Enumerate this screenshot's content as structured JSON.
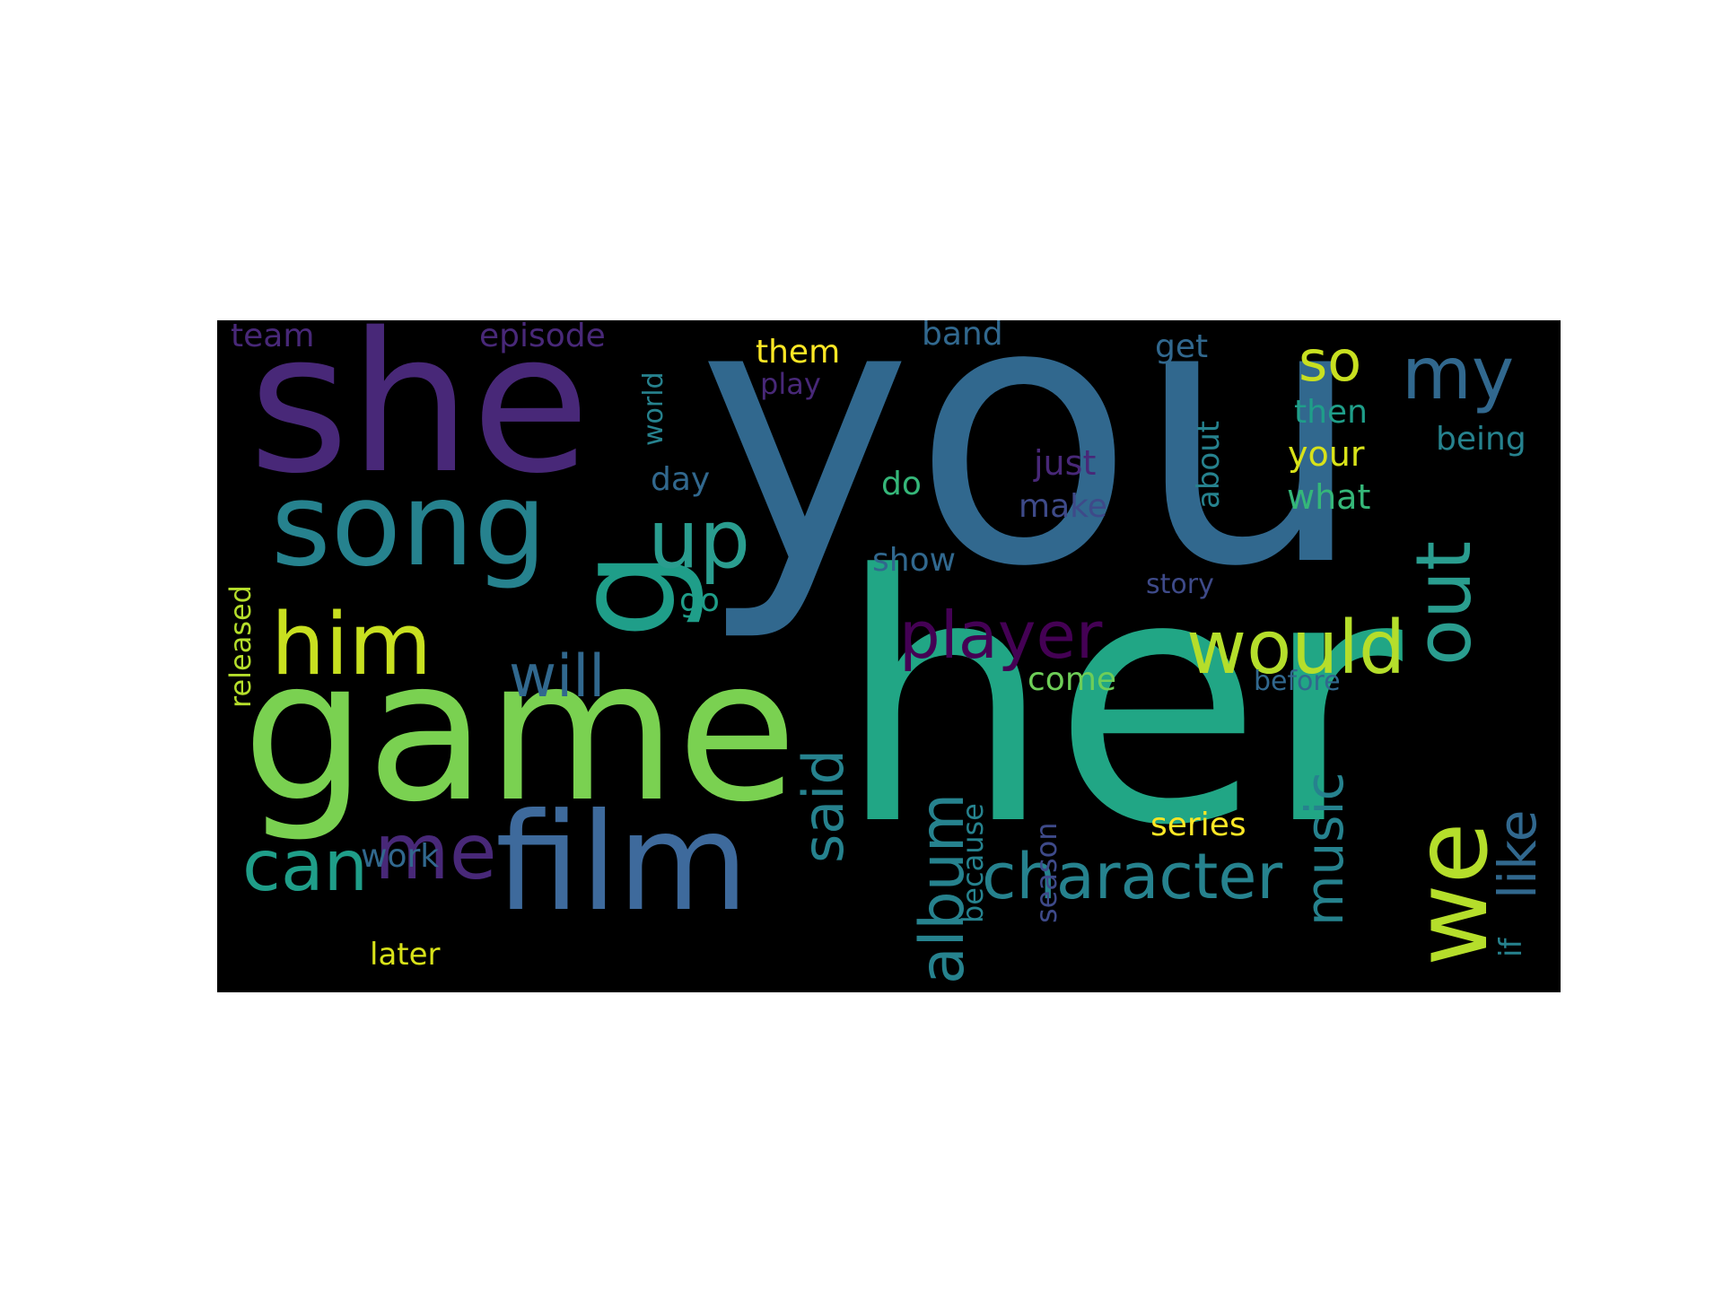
{
  "palette": {
    "c1": "#440154",
    "c2": "#482878",
    "c3": "#3e4a89",
    "c4": "#31688e",
    "c5": "#26828e",
    "c6": "#1f9e89",
    "c7": "#35b779",
    "c8": "#6ece58",
    "c9": "#b5de2b",
    "c10": "#fde725"
  },
  "words": [
    {
      "text": "you",
      "color": "#31688e"
    },
    {
      "text": "her",
      "color": "#21a685"
    },
    {
      "text": "she",
      "color": "#482878"
    },
    {
      "text": "game",
      "color": "#7ad151"
    },
    {
      "text": "song",
      "color": "#26828e"
    },
    {
      "text": "g",
      "color": "#1f9e89"
    },
    {
      "text": "film",
      "color": "#3e6a9c"
    },
    {
      "text": "we",
      "color": "#b5de2b"
    },
    {
      "text": "up",
      "color": "#2a9d8f"
    },
    {
      "text": "him",
      "color": "#c8e020"
    },
    {
      "text": "would",
      "color": "#b5de2b"
    },
    {
      "text": "player",
      "color": "#440154"
    },
    {
      "text": "out",
      "color": "#2a9d8f"
    },
    {
      "text": "so",
      "color": "#c8e020"
    },
    {
      "text": "my",
      "color": "#31688e"
    },
    {
      "text": "will",
      "color": "#31688e"
    },
    {
      "text": "can",
      "color": "#1f9e89"
    },
    {
      "text": "me",
      "color": "#482878"
    },
    {
      "text": "character",
      "color": "#26828e"
    },
    {
      "text": "album",
      "color": "#26828e"
    },
    {
      "text": "said",
      "color": "#26828e"
    },
    {
      "text": "music",
      "color": "#26828e"
    },
    {
      "text": "like",
      "color": "#31688e"
    },
    {
      "text": "team",
      "color": "#482878"
    },
    {
      "text": "episode",
      "color": "#482878"
    },
    {
      "text": "world",
      "color": "#26828e"
    },
    {
      "text": "them",
      "color": "#fde725"
    },
    {
      "text": "play",
      "color": "#482878"
    },
    {
      "text": "band",
      "color": "#31688e"
    },
    {
      "text": "get",
      "color": "#31688e"
    },
    {
      "text": "then",
      "color": "#1f9e89"
    },
    {
      "text": "about",
      "color": "#26828e"
    },
    {
      "text": "your",
      "color": "#d8e219"
    },
    {
      "text": "being",
      "color": "#26828e"
    },
    {
      "text": "what",
      "color": "#35b779"
    },
    {
      "text": "just",
      "color": "#482878"
    },
    {
      "text": "make",
      "color": "#3e4a89"
    },
    {
      "text": "day",
      "color": "#31688e"
    },
    {
      "text": "do",
      "color": "#35b779"
    },
    {
      "text": "show",
      "color": "#31688e"
    },
    {
      "text": "story",
      "color": "#3e4a89"
    },
    {
      "text": "go",
      "color": "#1f9e89"
    },
    {
      "text": "released",
      "color": "#b5de2b"
    },
    {
      "text": "come",
      "color": "#6ece58"
    },
    {
      "text": "before",
      "color": "#31688e"
    },
    {
      "text": "because",
      "color": "#26828e"
    },
    {
      "text": "season",
      "color": "#3e4a89"
    },
    {
      "text": "series",
      "color": "#fde725"
    },
    {
      "text": "work",
      "color": "#31688e"
    },
    {
      "text": "if",
      "color": "#26828e"
    },
    {
      "text": "later",
      "color": "#d8e219"
    }
  ]
}
